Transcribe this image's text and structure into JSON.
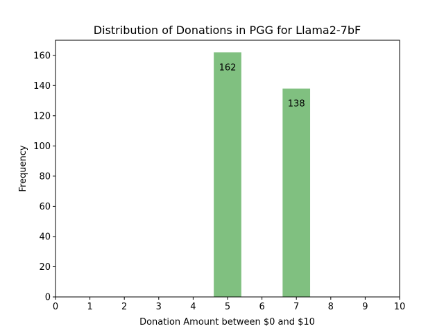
{
  "chart_data": {
    "type": "bar",
    "title": "Distribution of Donations in PGG for Llama2-7bF",
    "xlabel": "Donation Amount between $0 and $10",
    "ylabel": "Frequency",
    "xlim": [
      0,
      10
    ],
    "ylim": [
      0,
      170
    ],
    "xticks": [
      0,
      1,
      2,
      3,
      4,
      5,
      6,
      7,
      8,
      9,
      10
    ],
    "yticks": [
      0,
      20,
      40,
      60,
      80,
      100,
      120,
      140,
      160
    ],
    "bar_width": 0.8,
    "bars": [
      {
        "x": 5,
        "value": 162,
        "label": "162"
      },
      {
        "x": 7,
        "value": 138,
        "label": "138"
      }
    ],
    "bar_color": "#80c080",
    "grid": false,
    "legend": "none"
  }
}
